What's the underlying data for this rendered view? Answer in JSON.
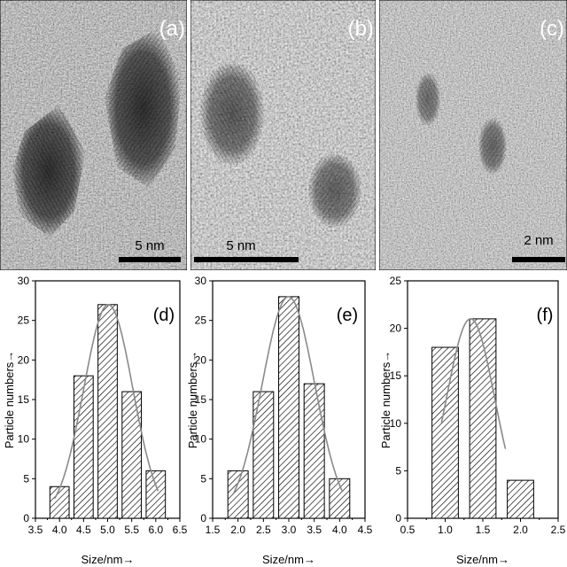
{
  "tem_panels": [
    {
      "label": "(a)",
      "scale_bar": "5 nm"
    },
    {
      "label": "(b)",
      "scale_bar": "5 nm"
    },
    {
      "label": "(c)",
      "scale_bar": "2 nm"
    }
  ],
  "chart_data": [
    {
      "type": "bar",
      "panel": "(d)",
      "x": [
        4.0,
        4.5,
        5.0,
        5.5,
        6.0
      ],
      "values": [
        4,
        18,
        27,
        16,
        6
      ],
      "xlim": [
        3.5,
        6.5
      ],
      "ylim": [
        0,
        30
      ],
      "xticks": [
        "3.5",
        "4.0",
        "4.5",
        "5.0",
        "5.5",
        "6.0",
        "6.5"
      ],
      "yticks": [
        "0",
        "5",
        "10",
        "15",
        "20",
        "25",
        "30"
      ],
      "xlabel": "Size/nm→",
      "ylabel": "Particle numbers→",
      "bar_width": 0.4,
      "fit_curve": true,
      "bar_pattern": "diagonal-hatch"
    },
    {
      "type": "bar",
      "panel": "(e)",
      "x": [
        2.0,
        2.5,
        3.0,
        3.5,
        4.0
      ],
      "values": [
        6,
        16,
        28,
        17,
        5
      ],
      "xlim": [
        1.5,
        4.5
      ],
      "ylim": [
        0,
        30
      ],
      "xticks": [
        "1.5",
        "2.0",
        "2.5",
        "3.0",
        "3.5",
        "4.0",
        "4.5"
      ],
      "yticks": [
        "0",
        "5",
        "10",
        "15",
        "20",
        "25",
        "30"
      ],
      "xlabel": "Size/nm→",
      "ylabel": "Particle numbers→",
      "bar_width": 0.4,
      "fit_curve": true,
      "bar_pattern": "diagonal-hatch"
    },
    {
      "type": "bar",
      "panel": "(f)",
      "x": [
        1.0,
        1.5,
        2.0
      ],
      "values": [
        18,
        21,
        4
      ],
      "xlim": [
        0.5,
        2.5
      ],
      "ylim": [
        0,
        25
      ],
      "xticks": [
        "0.5",
        "1.0",
        "1.5",
        "2.0",
        "2.5"
      ],
      "yticks": [
        "0",
        "5",
        "10",
        "15",
        "20",
        "25"
      ],
      "xlabel": "Size/nm→",
      "ylabel": "Particle numbers→",
      "bar_width": 0.35,
      "fit_curve": true,
      "bar_pattern": "diagonal-hatch"
    }
  ]
}
